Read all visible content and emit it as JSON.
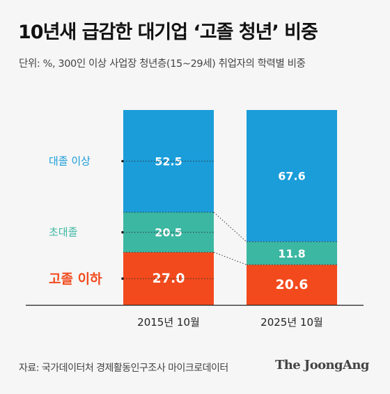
{
  "title": "10년새 급감한 대기업 ‘고졸 청년’ 비중",
  "subtitle": "단위: %, 300인 이상 사업장 청년층(15~29세) 취업자의 학력별 비중",
  "source": "자료: 국가데이터처 경제활동인구조사 마이크로데이터",
  "logo": "The JoongAng",
  "chart_data": {
    "type": "bar",
    "stacked": true,
    "categories": [
      "2015년 10월",
      "2025년 10월"
    ],
    "series": [
      {
        "name": "고졸 이하",
        "values": [
          27.0,
          20.6
        ],
        "color": "#f24a1d"
      },
      {
        "name": "초대졸",
        "values": [
          20.5,
          11.8
        ],
        "color": "#3bb7a2"
      },
      {
        "name": "대졸 이상",
        "values": [
          52.5,
          67.6
        ],
        "color": "#1a9dd9"
      }
    ],
    "value_labels": [
      [
        "27.0",
        "20.5",
        "52.5"
      ],
      [
        "20.6",
        "11.8",
        "67.6"
      ]
    ],
    "ylim": [
      0,
      100
    ],
    "legend": "left"
  }
}
